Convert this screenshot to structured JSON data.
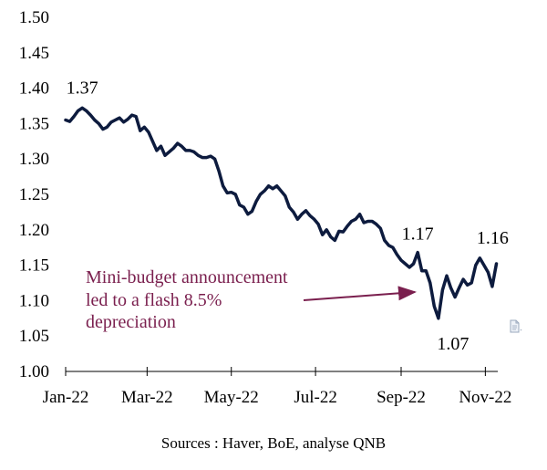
{
  "chart_data": {
    "type": "line",
    "title": "",
    "xlabel": "",
    "ylabel": "",
    "ylim": [
      1.0,
      1.5
    ],
    "yticks": [
      "1.00",
      "1.05",
      "1.10",
      "1.15",
      "1.20",
      "1.25",
      "1.30",
      "1.35",
      "1.40",
      "1.45",
      "1.50"
    ],
    "xticks": [
      "Jan-22",
      "Mar-22",
      "May-22",
      "Jul-22",
      "Sep-22",
      "Nov-22"
    ],
    "grid": false,
    "legend": "none",
    "series": [
      {
        "color": "#0d1b3e",
        "points": [
          [
            "2022-01-01",
            1.355
          ],
          [
            "2022-01-04",
            1.353
          ],
          [
            "2022-01-07",
            1.36
          ],
          [
            "2022-01-10",
            1.368
          ],
          [
            "2022-01-13",
            1.372
          ],
          [
            "2022-01-16",
            1.368
          ],
          [
            "2022-01-19",
            1.362
          ],
          [
            "2022-01-22",
            1.355
          ],
          [
            "2022-01-25",
            1.35
          ],
          [
            "2022-01-28",
            1.342
          ],
          [
            "2022-01-31",
            1.345
          ],
          [
            "2022-02-03",
            1.352
          ],
          [
            "2022-02-06",
            1.355
          ],
          [
            "2022-02-09",
            1.358
          ],
          [
            "2022-02-12",
            1.352
          ],
          [
            "2022-02-15",
            1.356
          ],
          [
            "2022-02-18",
            1.362
          ],
          [
            "2022-02-21",
            1.36
          ],
          [
            "2022-02-24",
            1.34
          ],
          [
            "2022-02-27",
            1.345
          ],
          [
            "2022-03-02",
            1.338
          ],
          [
            "2022-03-05",
            1.325
          ],
          [
            "2022-03-08",
            1.312
          ],
          [
            "2022-03-11",
            1.318
          ],
          [
            "2022-03-14",
            1.305
          ],
          [
            "2022-03-17",
            1.31
          ],
          [
            "2022-03-20",
            1.315
          ],
          [
            "2022-03-23",
            1.322
          ],
          [
            "2022-03-26",
            1.318
          ],
          [
            "2022-03-29",
            1.312
          ],
          [
            "2022-04-01",
            1.312
          ],
          [
            "2022-04-04",
            1.31
          ],
          [
            "2022-04-07",
            1.305
          ],
          [
            "2022-04-10",
            1.302
          ],
          [
            "2022-04-13",
            1.302
          ],
          [
            "2022-04-16",
            1.304
          ],
          [
            "2022-04-19",
            1.3
          ],
          [
            "2022-04-22",
            1.283
          ],
          [
            "2022-04-25",
            1.262
          ],
          [
            "2022-04-28",
            1.252
          ],
          [
            "2022-05-01",
            1.253
          ],
          [
            "2022-05-04",
            1.25
          ],
          [
            "2022-05-07",
            1.235
          ],
          [
            "2022-05-10",
            1.232
          ],
          [
            "2022-05-13",
            1.222
          ],
          [
            "2022-05-16",
            1.226
          ],
          [
            "2022-05-19",
            1.24
          ],
          [
            "2022-05-22",
            1.25
          ],
          [
            "2022-05-25",
            1.255
          ],
          [
            "2022-05-28",
            1.262
          ],
          [
            "2022-05-31",
            1.258
          ],
          [
            "2022-06-03",
            1.262
          ],
          [
            "2022-06-06",
            1.255
          ],
          [
            "2022-06-09",
            1.248
          ],
          [
            "2022-06-12",
            1.232
          ],
          [
            "2022-06-15",
            1.225
          ],
          [
            "2022-06-18",
            1.215
          ],
          [
            "2022-06-21",
            1.222
          ],
          [
            "2022-06-24",
            1.227
          ],
          [
            "2022-06-27",
            1.22
          ],
          [
            "2022-06-30",
            1.215
          ],
          [
            "2022-07-03",
            1.208
          ],
          [
            "2022-07-06",
            1.193
          ],
          [
            "2022-07-09",
            1.2
          ],
          [
            "2022-07-12",
            1.19
          ],
          [
            "2022-07-15",
            1.185
          ],
          [
            "2022-07-18",
            1.198
          ],
          [
            "2022-07-21",
            1.197
          ],
          [
            "2022-07-24",
            1.205
          ],
          [
            "2022-07-27",
            1.212
          ],
          [
            "2022-07-30",
            1.215
          ],
          [
            "2022-08-02",
            1.222
          ],
          [
            "2022-08-05",
            1.21
          ],
          [
            "2022-08-08",
            1.212
          ],
          [
            "2022-08-11",
            1.212
          ],
          [
            "2022-08-14",
            1.208
          ],
          [
            "2022-08-17",
            1.202
          ],
          [
            "2022-08-20",
            1.185
          ],
          [
            "2022-08-23",
            1.178
          ],
          [
            "2022-08-26",
            1.175
          ],
          [
            "2022-08-29",
            1.165
          ],
          [
            "2022-09-01",
            1.157
          ],
          [
            "2022-09-04",
            1.152
          ],
          [
            "2022-09-07",
            1.147
          ],
          [
            "2022-09-10",
            1.152
          ],
          [
            "2022-09-13",
            1.168
          ],
          [
            "2022-09-16",
            1.142
          ],
          [
            "2022-09-19",
            1.142
          ],
          [
            "2022-09-22",
            1.125
          ],
          [
            "2022-09-25",
            1.092
          ],
          [
            "2022-09-28",
            1.075
          ],
          [
            "2022-10-01",
            1.115
          ],
          [
            "2022-10-04",
            1.135
          ],
          [
            "2022-10-07",
            1.118
          ],
          [
            "2022-10-10",
            1.105
          ],
          [
            "2022-10-13",
            1.118
          ],
          [
            "2022-10-16",
            1.13
          ],
          [
            "2022-10-19",
            1.122
          ],
          [
            "2022-10-22",
            1.125
          ],
          [
            "2022-10-25",
            1.15
          ],
          [
            "2022-10-28",
            1.16
          ],
          [
            "2022-10-31",
            1.15
          ],
          [
            "2022-11-03",
            1.14
          ],
          [
            "2022-11-06",
            1.12
          ],
          [
            "2022-11-09",
            1.152
          ]
        ]
      }
    ],
    "data_labels": [
      {
        "text": "1.37",
        "x": "2022-01-13",
        "y": 1.372
      },
      {
        "text": "1.17",
        "x": "2022-09-13",
        "y": 1.168
      },
      {
        "text": "1.07",
        "x": "2022-09-28",
        "y": 1.075
      },
      {
        "text": "1.16",
        "x": "2022-10-28",
        "y": 1.16
      }
    ],
    "annotation": {
      "lines": [
        "Mini-budget announcement",
        "led to a flash 8.5%",
        "depreciation"
      ],
      "color": "#7a1f4e"
    }
  },
  "source": "Sources : Haver, BoE, analyse QNB"
}
